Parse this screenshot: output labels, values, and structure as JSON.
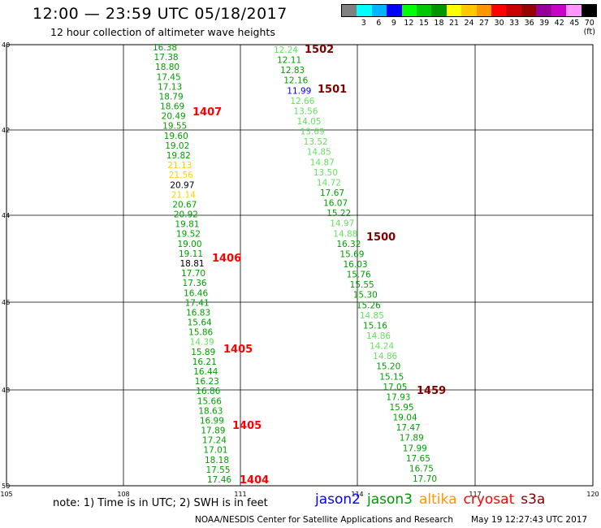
{
  "header": {
    "title": "12:00 — 23:59 UTC 05/18/2017",
    "subtitle": "12 hour collection of altimeter wave heights"
  },
  "color_scale": {
    "colors": [
      "#808080",
      "#00ffff",
      "#00b4ff",
      "#0000ff",
      "#00ff00",
      "#00c800",
      "#009600",
      "#ffff00",
      "#ffc800",
      "#ff9600",
      "#ff0000",
      "#c80000",
      "#960000",
      "#960096",
      "#c800c8",
      "#ff96ff",
      "#000000"
    ],
    "labels": [
      "",
      "3",
      "6",
      "9",
      "12",
      "15",
      "18",
      "21",
      "24",
      "27",
      "30",
      "33",
      "36",
      "39",
      "42",
      "45",
      "70 (ft)"
    ]
  },
  "axes": {
    "y_labels": [
      "40",
      "42",
      "44",
      "46",
      "48",
      "50"
    ],
    "x_labels": [
      "105",
      "108",
      "111",
      "114",
      "117",
      "120"
    ]
  },
  "series": {
    "track_a": {
      "values": [
        "16.38",
        "17.38",
        "18.80",
        "17.45",
        "17.13",
        "18.79",
        "18.69",
        "20.49",
        "19.55",
        "19.60",
        "19.02",
        "19.82",
        "21.13",
        "21.56",
        "20.97",
        "21.14",
        "20.67",
        "20.92",
        "19.81",
        "19.52",
        "19.00",
        "19.11",
        "18.81",
        "17.70",
        "17.36",
        "16.46",
        "17.41",
        "16.83",
        "15.64",
        "15.86",
        "14.39",
        "15.89",
        "16.21",
        "16.44",
        "16.23",
        "16.86",
        "15.66",
        "18.63",
        "16.99",
        "17.89",
        "17.24",
        "17.01",
        "18.18",
        "17.55",
        "17.46"
      ],
      "colors": [
        "g",
        "g",
        "g",
        "g",
        "g",
        "g",
        "g",
        "g",
        "g",
        "g",
        "g",
        "g",
        "y",
        "y",
        "dg",
        "y",
        "g",
        "g",
        "g",
        "g",
        "g",
        "g",
        "dg",
        "g",
        "g",
        "g",
        "g",
        "g",
        "g",
        "g",
        "lg",
        "g",
        "g",
        "g",
        "g",
        "g",
        "g",
        "g",
        "g",
        "g",
        "g",
        "g",
        "g",
        "g",
        "g"
      ]
    },
    "track_b": {
      "values": [
        "12.24",
        "12.11",
        "12.83",
        "12.16",
        "11.99",
        "12.66",
        "13.56",
        "14.05",
        "13.69",
        "13.52",
        "14.85",
        "14.87",
        "13.50",
        "14.72",
        "17.67",
        "16.07",
        "15.22",
        "14.97",
        "14.88",
        "16.32",
        "15.69",
        "16.03",
        "15.76",
        "15.55",
        "15.30",
        "15.26",
        "14.85",
        "15.16",
        "14.86",
        "14.24",
        "14.86",
        "15.20",
        "15.15",
        "17.05",
        "17.93",
        "15.95",
        "19.04",
        "17.47",
        "17.89",
        "17.99",
        "17.65",
        "16.75",
        "17.70"
      ],
      "colors": [
        "lg",
        "g",
        "g",
        "g",
        "b",
        "lg",
        "lg",
        "lg",
        "lg",
        "lg",
        "lg",
        "lg",
        "lg",
        "lg",
        "g",
        "g",
        "g",
        "lg",
        "lg",
        "g",
        "g",
        "g",
        "g",
        "g",
        "g",
        "g",
        "lg",
        "g",
        "lg",
        "lg",
        "lg",
        "g",
        "g",
        "g",
        "g",
        "g",
        "g",
        "g",
        "g",
        "g",
        "g",
        "g",
        "g"
      ]
    }
  },
  "time_labels": [
    {
      "text": "1502",
      "color": "#800000"
    },
    {
      "text": "1501",
      "color": "#800000"
    },
    {
      "text": "1407",
      "color": "#ff0000"
    },
    {
      "text": "1500",
      "color": "#800000"
    },
    {
      "text": "1406",
      "color": "#ff0000"
    },
    {
      "text": "1405",
      "color": "#ff0000"
    },
    {
      "text": "1459",
      "color": "#800000"
    },
    {
      "text": "1405",
      "color": "#ff0000"
    },
    {
      "text": "1404",
      "color": "#ff0000"
    }
  ],
  "footer": {
    "note": "note:  1) Time is in UTC;  2) SWH is in feet",
    "legend": [
      {
        "text": "jason2",
        "color": "#0000ff"
      },
      {
        "text": "jason3",
        "color": "#009600"
      },
      {
        "text": "altika",
        "color": "#ff9600"
      },
      {
        "text": "cryosat",
        "color": "#ff0000"
      },
      {
        "text": "s3a",
        "color": "#800000"
      }
    ],
    "credit": "NOAA/NESDIS Center for Satellite Applications and Research",
    "timestamp": "May 19 12:27:43 UTC 2017"
  }
}
